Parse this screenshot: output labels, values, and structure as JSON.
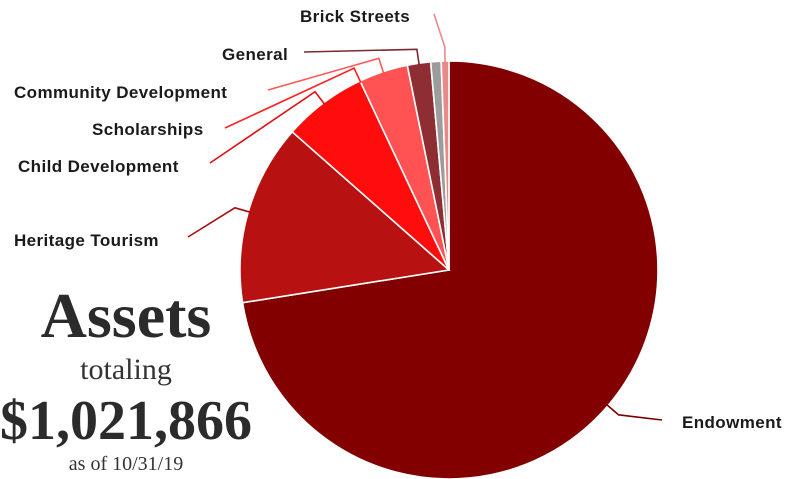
{
  "chart_data": {
    "type": "pie",
    "slices": [
      {
        "label": "Endowment",
        "value": 72.5,
        "color": "#820000"
      },
      {
        "label": "Heritage Tourism",
        "value": 14.0,
        "color": "#b81111"
      },
      {
        "label": "Child Development",
        "value": 6.5,
        "color": "#ff0c0c"
      },
      {
        "label": "Scholarships",
        "value": 0,
        "color": "#ff2b2b"
      },
      {
        "label": "Community Development",
        "value": 3.8,
        "color": "#ff5252"
      },
      {
        "label": "General",
        "value": 1.8,
        "color": "#8f2e32"
      },
      {
        "label": "",
        "value": 0.8,
        "color": "#9c9c9c"
      },
      {
        "label": "Brick Streets",
        "value": 0.6,
        "color": "#e98a8a"
      }
    ],
    "legend": "none",
    "callout_colors": {
      "Endowment": "#7a0000",
      "Heritage Tourism": "#a81010",
      "Child Development": "#e01010",
      "Scholarships": "#ff2020",
      "Community Development": "#ff5a5a",
      "General": "#7a2a2e",
      "Brick Streets": "#e98a8a"
    }
  },
  "headline": {
    "title": "Assets",
    "subtitle": "totaling",
    "amount": "$1,021,866",
    "as_of": "as of 10/31/19"
  }
}
